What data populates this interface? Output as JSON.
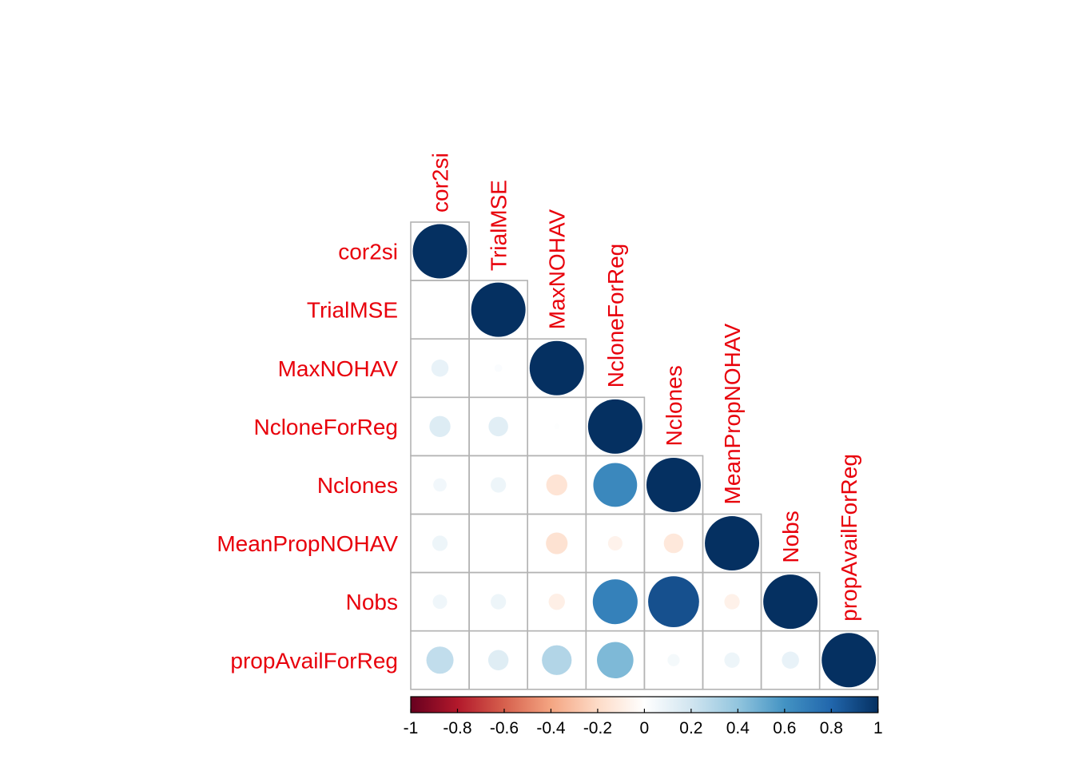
{
  "chart_data": {
    "type": "heatmap",
    "subtype": "correlation-matrix-lower-triangle",
    "title": "",
    "variables": [
      "cor2si",
      "TrialMSE",
      "MaxNOHAV",
      "NcloneForReg",
      "Nclones",
      "MeanPropNOHAV",
      "Nobs",
      "propAvailForReg"
    ],
    "matrix": [
      [
        1.0,
        0.0,
        0.1,
        0.15,
        0.06,
        0.08,
        0.07,
        0.25
      ],
      [
        0.0,
        1.0,
        0.02,
        0.13,
        0.08,
        0.0,
        0.08,
        0.14
      ],
      [
        0.1,
        0.02,
        1.0,
        0.01,
        -0.15,
        -0.16,
        -0.09,
        0.3
      ],
      [
        0.15,
        0.13,
        0.01,
        1.0,
        0.65,
        -0.07,
        0.68,
        0.45
      ],
      [
        0.06,
        0.08,
        -0.15,
        0.65,
        1.0,
        -0.13,
        0.88,
        0.05
      ],
      [
        0.08,
        0.0,
        -0.16,
        -0.07,
        -0.13,
        1.0,
        -0.08,
        0.08
      ],
      [
        0.07,
        0.08,
        -0.09,
        0.68,
        0.88,
        -0.08,
        1.0,
        0.1
      ],
      [
        0.25,
        0.14,
        0.3,
        0.45,
        0.05,
        0.08,
        0.1,
        1.0
      ]
    ],
    "method": "circle",
    "label_color": "#e8000b",
    "colorbar": {
      "range": [
        -1,
        1
      ],
      "ticks": [
        "-1",
        "-0.8",
        "-0.6",
        "-0.4",
        "-0.2",
        "0",
        "0.2",
        "0.4",
        "0.6",
        "0.8",
        "1"
      ],
      "colors": [
        "#67001f",
        "#b2182b",
        "#d6604d",
        "#f4a582",
        "#fddbc7",
        "#ffffff",
        "#d1e5f0",
        "#92c5de",
        "#4393c3",
        "#2166ac",
        "#053061"
      ]
    },
    "grid": true
  }
}
